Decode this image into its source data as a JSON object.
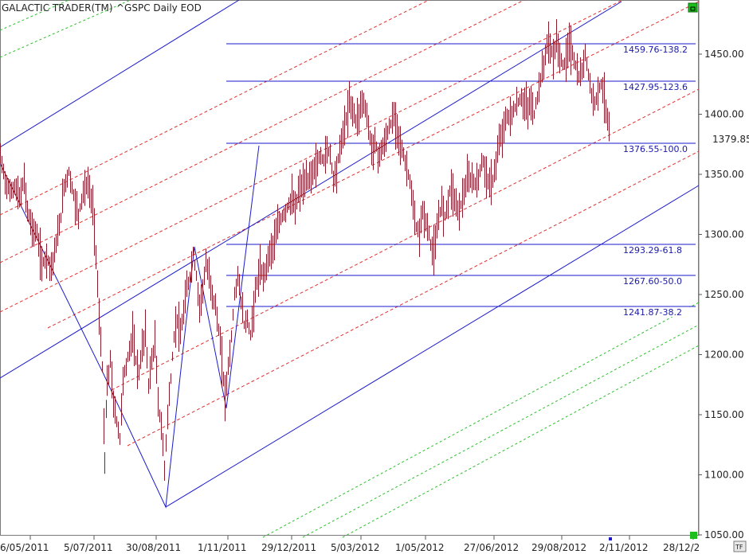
{
  "header": {
    "app_title": "GALACTIC TRADER(TM)",
    "symbol_title": "^GSPC Daily EOD"
  },
  "colors": {
    "candle": "#8b1a2a",
    "pitchfork": "#1a1acc",
    "red_lines": "#e03030",
    "green_lines": "#2cc02c",
    "fib_lines": "#1a1acc",
    "corner_box": "#1dbf1d"
  },
  "chart_data": {
    "type": "ohlc",
    "y_axis": {
      "ticks": [
        "1450.00",
        "1400.00",
        "1350.00",
        "1300.00",
        "1250.00",
        "1200.00",
        "1150.00",
        "1100.00",
        "1050.00"
      ],
      "range": [
        1045,
        1480
      ]
    },
    "x_axis": {
      "labels": [
        "6/05/2011",
        "5/07/2011",
        "30/08/2011",
        "1/11/2011",
        "29/12/2011",
        "5/03/2012",
        "1/05/2012",
        "27/06/2012",
        "29/08/2012",
        "2/11/2012",
        "28/12/2"
      ]
    },
    "current_price_label": "1379.85",
    "fib_levels": [
      {
        "label": "1459.76-138.2",
        "value": 1459.76
      },
      {
        "label": "1427.95-123.6",
        "value": 1427.95
      },
      {
        "label": "1376.55-100.0",
        "value": 1376.55
      },
      {
        "label": "1293.29-61.8",
        "value": 1293.29
      },
      {
        "label": "1267.60-50.0",
        "value": 1267.6
      },
      {
        "label": "1241.87-38.2",
        "value": 1241.87
      }
    ],
    "price_path": [
      [
        0,
        1365
      ],
      [
        6,
        1345
      ],
      [
        12,
        1335
      ],
      [
        18,
        1340
      ],
      [
        24,
        1330
      ],
      [
        30,
        1345
      ],
      [
        34,
        1320
      ],
      [
        40,
        1305
      ],
      [
        46,
        1300
      ],
      [
        52,
        1275
      ],
      [
        58,
        1282
      ],
      [
        64,
        1272
      ],
      [
        70,
        1292
      ],
      [
        76,
        1315
      ],
      [
        80,
        1340
      ],
      [
        86,
        1352
      ],
      [
        92,
        1332
      ],
      [
        98,
        1316
      ],
      [
        104,
        1336
      ],
      [
        110,
        1342
      ],
      [
        116,
        1322
      ],
      [
        120,
        1285
      ],
      [
        124,
        1230
      ],
      [
        128,
        1190
      ],
      [
        131,
        1110
      ],
      [
        134,
        1175
      ],
      [
        138,
        1195
      ],
      [
        142,
        1160
      ],
      [
        146,
        1145
      ],
      [
        150,
        1130
      ],
      [
        154,
        1180
      ],
      [
        158,
        1190
      ],
      [
        162,
        1205
      ],
      [
        166,
        1215
      ],
      [
        170,
        1195
      ],
      [
        174,
        1185
      ],
      [
        178,
        1205
      ],
      [
        182,
        1220
      ],
      [
        186,
        1175
      ],
      [
        190,
        1195
      ],
      [
        194,
        1210
      ],
      [
        198,
        1160
      ],
      [
        202,
        1140
      ],
      [
        206,
        1105
      ],
      [
        210,
        1150
      ],
      [
        214,
        1180
      ],
      [
        218,
        1215
      ],
      [
        222,
        1230
      ],
      [
        226,
        1215
      ],
      [
        230,
        1235
      ],
      [
        234,
        1255
      ],
      [
        238,
        1265
      ],
      [
        242,
        1285
      ],
      [
        246,
        1265
      ],
      [
        250,
        1240
      ],
      [
        254,
        1255
      ],
      [
        258,
        1275
      ],
      [
        262,
        1265
      ],
      [
        266,
        1250
      ],
      [
        270,
        1240
      ],
      [
        274,
        1220
      ],
      [
        278,
        1195
      ],
      [
        282,
        1165
      ],
      [
        286,
        1190
      ],
      [
        290,
        1215
      ],
      [
        294,
        1250
      ],
      [
        298,
        1265
      ],
      [
        302,
        1245
      ],
      [
        306,
        1225
      ],
      [
        310,
        1230
      ],
      [
        314,
        1215
      ],
      [
        318,
        1240
      ],
      [
        322,
        1260
      ],
      [
        326,
        1270
      ],
      [
        330,
        1265
      ],
      [
        334,
        1275
      ],
      [
        338,
        1285
      ],
      [
        342,
        1290
      ],
      [
        346,
        1300
      ],
      [
        350,
        1310
      ],
      [
        354,
        1315
      ],
      [
        358,
        1320
      ],
      [
        362,
        1325
      ],
      [
        366,
        1330
      ],
      [
        370,
        1320
      ],
      [
        374,
        1335
      ],
      [
        378,
        1340
      ],
      [
        382,
        1342
      ],
      [
        386,
        1345
      ],
      [
        390,
        1350
      ],
      [
        394,
        1355
      ],
      [
        398,
        1360
      ],
      [
        402,
        1365
      ],
      [
        406,
        1362
      ],
      [
        410,
        1370
      ],
      [
        414,
        1368
      ],
      [
        418,
        1345
      ],
      [
        422,
        1355
      ],
      [
        426,
        1370
      ],
      [
        430,
        1385
      ],
      [
        434,
        1395
      ],
      [
        438,
        1410
      ],
      [
        442,
        1405
      ],
      [
        446,
        1395
      ],
      [
        450,
        1400
      ],
      [
        454,
        1412
      ],
      [
        458,
        1405
      ],
      [
        462,
        1390
      ],
      [
        466,
        1370
      ],
      [
        470,
        1378
      ],
      [
        474,
        1365
      ],
      [
        478,
        1370
      ],
      [
        482,
        1375
      ],
      [
        486,
        1385
      ],
      [
        490,
        1392
      ],
      [
        494,
        1398
      ],
      [
        498,
        1390
      ],
      [
        502,
        1375
      ],
      [
        506,
        1365
      ],
      [
        510,
        1355
      ],
      [
        514,
        1345
      ],
      [
        518,
        1320
      ],
      [
        522,
        1305
      ],
      [
        526,
        1300
      ],
      [
        530,
        1320
      ],
      [
        534,
        1310
      ],
      [
        538,
        1300
      ],
      [
        542,
        1285
      ],
      [
        546,
        1290
      ],
      [
        550,
        1315
      ],
      [
        554,
        1325
      ],
      [
        558,
        1315
      ],
      [
        562,
        1330
      ],
      [
        566,
        1340
      ],
      [
        570,
        1330
      ],
      [
        574,
        1320
      ],
      [
        578,
        1325
      ],
      [
        582,
        1335
      ],
      [
        586,
        1345
      ],
      [
        590,
        1345
      ],
      [
        594,
        1345
      ],
      [
        598,
        1340
      ],
      [
        602,
        1355
      ],
      [
        606,
        1360
      ],
      [
        610,
        1350
      ],
      [
        614,
        1340
      ],
      [
        618,
        1345
      ],
      [
        622,
        1360
      ],
      [
        626,
        1375
      ],
      [
        630,
        1385
      ],
      [
        634,
        1395
      ],
      [
        638,
        1398
      ],
      [
        642,
        1400
      ],
      [
        646,
        1405
      ],
      [
        650,
        1410
      ],
      [
        654,
        1413
      ],
      [
        658,
        1408
      ],
      [
        662,
        1405
      ],
      [
        666,
        1410
      ],
      [
        670,
        1400
      ],
      [
        674,
        1415
      ],
      [
        678,
        1430
      ],
      [
        682,
        1440
      ],
      [
        686,
        1460
      ],
      [
        690,
        1455
      ],
      [
        694,
        1448
      ],
      [
        698,
        1460
      ],
      [
        702,
        1450
      ],
      [
        706,
        1440
      ],
      [
        710,
        1445
      ],
      [
        714,
        1460
      ],
      [
        718,
        1450
      ],
      [
        722,
        1440
      ],
      [
        726,
        1430
      ],
      [
        730,
        1435
      ],
      [
        734,
        1450
      ],
      [
        738,
        1435
      ],
      [
        742,
        1415
      ],
      [
        746,
        1410
      ],
      [
        750,
        1420
      ],
      [
        754,
        1425
      ],
      [
        758,
        1415
      ],
      [
        762,
        1395
      ],
      [
        765,
        1382
      ]
    ]
  }
}
